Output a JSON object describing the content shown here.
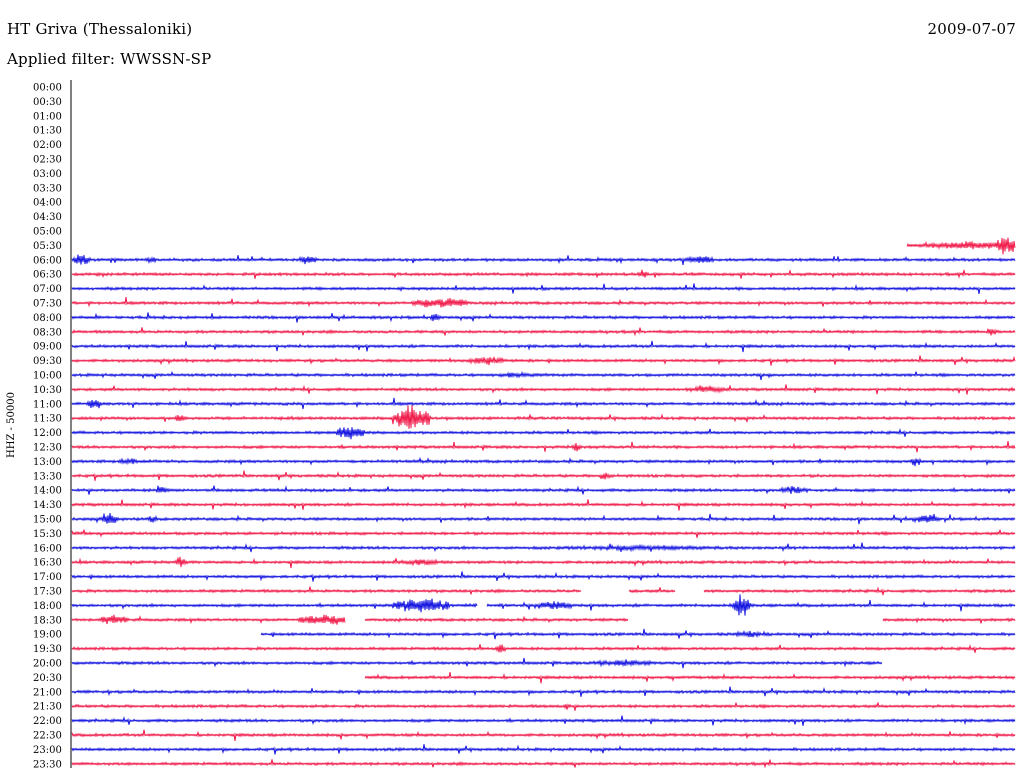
{
  "header": {
    "station": "HT Griva (Thessaloniki)",
    "date": "2009-07-07",
    "filter": "Applied filter: WWSSN-SP"
  },
  "chart_data": {
    "type": "line",
    "title": "HT Griva (Thessaloniki)",
    "ylabel": "HHZ - 50000",
    "y_ticks": [
      "00:00",
      "00:30",
      "01:00",
      "01:30",
      "02:00",
      "02:30",
      "03:00",
      "03:30",
      "04:00",
      "04:30",
      "05:00",
      "05:30",
      "06:00",
      "06:30",
      "07:00",
      "07:30",
      "08:00",
      "08:30",
      "09:00",
      "09:30",
      "10:00",
      "10:30",
      "11:00",
      "11:30",
      "12:00",
      "12:30",
      "13:00",
      "13:30",
      "14:00",
      "14:30",
      "15:00",
      "15:30",
      "16:00",
      "16:30",
      "17:00",
      "17:30",
      "18:00",
      "18:30",
      "19:00",
      "19:30",
      "20:00",
      "20:30",
      "21:00",
      "21:30",
      "22:00",
      "22:30",
      "23:00",
      "23:30"
    ],
    "series_colors": [
      "#1010e0",
      "#f01848"
    ],
    "data_start_row": "05:30",
    "data_start_fraction": 0.885,
    "grid": false,
    "traces": [
      {
        "row": "05:30",
        "bursts": [
          [
            0.9,
            1.0,
            5
          ],
          [
            0.98,
            1.0,
            14
          ]
        ],
        "gaps": []
      },
      {
        "row": "06:00",
        "bursts": [
          [
            0.0,
            0.02,
            8
          ],
          [
            0.08,
            0.09,
            5
          ],
          [
            0.24,
            0.26,
            6
          ],
          [
            0.65,
            0.68,
            5
          ]
        ],
        "gaps": []
      },
      {
        "row": "06:30",
        "bursts": [
          [
            0.6,
            0.61,
            6
          ]
        ],
        "gaps": []
      },
      {
        "row": "07:00",
        "bursts": [],
        "gaps": []
      },
      {
        "row": "07:30",
        "bursts": [
          [
            0.36,
            0.42,
            7
          ]
        ],
        "gaps": []
      },
      {
        "row": "08:00",
        "bursts": [
          [
            0.38,
            0.39,
            6
          ]
        ],
        "gaps": []
      },
      {
        "row": "08:30",
        "bursts": [
          [
            0.97,
            0.98,
            6
          ]
        ],
        "gaps": []
      },
      {
        "row": "09:00",
        "bursts": [],
        "gaps": []
      },
      {
        "row": "09:30",
        "bursts": [
          [
            0.42,
            0.46,
            6
          ]
        ],
        "gaps": []
      },
      {
        "row": "10:00",
        "bursts": [
          [
            0.45,
            0.49,
            4
          ]
        ],
        "gaps": []
      },
      {
        "row": "10:30",
        "bursts": [
          [
            0.65,
            0.7,
            4
          ]
        ],
        "gaps": []
      },
      {
        "row": "11:00",
        "bursts": [
          [
            0.015,
            0.03,
            10
          ]
        ],
        "gaps": []
      },
      {
        "row": "11:30",
        "bursts": [
          [
            0.34,
            0.38,
            16
          ],
          [
            0.11,
            0.12,
            6
          ]
        ],
        "gaps": []
      },
      {
        "row": "12:00",
        "bursts": [
          [
            0.28,
            0.31,
            10
          ]
        ],
        "gaps": []
      },
      {
        "row": "12:30",
        "bursts": [
          [
            0.53,
            0.54,
            6
          ]
        ],
        "gaps": []
      },
      {
        "row": "13:00",
        "bursts": [
          [
            0.05,
            0.07,
            4
          ],
          [
            0.89,
            0.9,
            7
          ]
        ],
        "gaps": []
      },
      {
        "row": "13:30",
        "bursts": [
          [
            0.56,
            0.57,
            7
          ]
        ],
        "gaps": []
      },
      {
        "row": "14:00",
        "bursts": [
          [
            0.09,
            0.1,
            9
          ],
          [
            0.75,
            0.78,
            5
          ]
        ],
        "gaps": []
      },
      {
        "row": "14:30",
        "bursts": [],
        "gaps": []
      },
      {
        "row": "15:00",
        "bursts": [
          [
            0.03,
            0.05,
            7
          ],
          [
            0.08,
            0.09,
            5
          ],
          [
            0.89,
            0.92,
            6
          ]
        ],
        "gaps": []
      },
      {
        "row": "15:30",
        "bursts": [],
        "gaps": []
      },
      {
        "row": "16:00",
        "bursts": [
          [
            0.5,
            0.7,
            3
          ]
        ],
        "gaps": []
      },
      {
        "row": "16:30",
        "bursts": [
          [
            0.11,
            0.12,
            7
          ],
          [
            0.34,
            0.4,
            4
          ]
        ],
        "gaps": []
      },
      {
        "row": "17:00",
        "bursts": [],
        "gaps": []
      },
      {
        "row": "17:30",
        "bursts": [],
        "gaps": [
          [
            0.54,
            0.59
          ],
          [
            0.64,
            0.67
          ]
        ]
      },
      {
        "row": "18:00",
        "bursts": [
          [
            0.34,
            0.4,
            10
          ],
          [
            0.49,
            0.53,
            6
          ],
          [
            0.7,
            0.72,
            15
          ]
        ],
        "gaps": [
          [
            0.43,
            0.44
          ]
        ]
      },
      {
        "row": "18:30",
        "bursts": [
          [
            0.03,
            0.06,
            7
          ],
          [
            0.24,
            0.29,
            7
          ]
        ],
        "gaps": [
          [
            0.29,
            0.31
          ],
          [
            0.59,
            0.86
          ]
        ]
      },
      {
        "row": "19:00",
        "bursts": [
          [
            0.7,
            0.74,
            4
          ]
        ],
        "gaps": [
          [
            0.0,
            0.2
          ]
        ]
      },
      {
        "row": "19:30",
        "bursts": [
          [
            0.45,
            0.46,
            8
          ]
        ],
        "gaps": []
      },
      {
        "row": "20:00",
        "bursts": [
          [
            0.55,
            0.62,
            4
          ]
        ],
        "gaps": [
          [
            0.86,
            1.0
          ]
        ]
      },
      {
        "row": "20:30",
        "bursts": [],
        "gaps": [
          [
            0.0,
            0.31
          ]
        ]
      },
      {
        "row": "21:00",
        "bursts": [],
        "gaps": []
      },
      {
        "row": "21:30",
        "bursts": [
          [
            0.52,
            0.53,
            4
          ]
        ],
        "gaps": []
      },
      {
        "row": "22:00",
        "bursts": [],
        "gaps": []
      },
      {
        "row": "22:30",
        "bursts": [],
        "gaps": []
      },
      {
        "row": "23:00",
        "bursts": [],
        "gaps": []
      },
      {
        "row": "23:30",
        "bursts": [],
        "gaps": []
      }
    ]
  }
}
